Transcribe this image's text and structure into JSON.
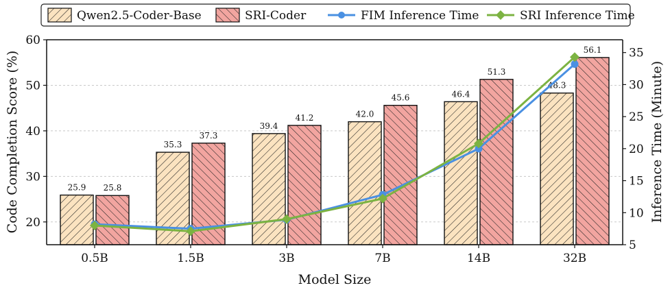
{
  "chart_data": {
    "type": "bar",
    "categories": [
      "0.5B",
      "1.5B",
      "3B",
      "7B",
      "14B",
      "32B"
    ],
    "xlabel": "Model Size",
    "ylabel": "Code Completion Score (%)",
    "y2label": "Inference Time (Minute)",
    "ylim": [
      15,
      60
    ],
    "y2lim": [
      5,
      37
    ],
    "yticks": [
      20,
      30,
      40,
      50,
      60
    ],
    "y2ticks": [
      5,
      10,
      15,
      20,
      25,
      30,
      35
    ],
    "grid": true,
    "legend_position": "top",
    "series": [
      {
        "name": "Qwen2.5-Coder-Base",
        "kind": "bar",
        "color": "#fbe3c0",
        "values": [
          25.9,
          35.3,
          39.4,
          42.0,
          46.4,
          48.3
        ],
        "labels": [
          "25.9",
          "35.3",
          "39.4",
          "42.0",
          "46.4",
          "48.3"
        ]
      },
      {
        "name": "SRI-Coder",
        "kind": "bar",
        "color": "#f2a5a0",
        "values": [
          25.8,
          37.3,
          41.2,
          45.6,
          51.3,
          56.1
        ],
        "labels": [
          "25.8",
          "37.3",
          "41.2",
          "45.6",
          "51.3",
          "56.1"
        ]
      },
      {
        "name": "FIM Inference Time",
        "kind": "line",
        "axis": "right",
        "color": "#4a90e2",
        "marker": "circle",
        "values": [
          8.2,
          7.5,
          8.9,
          12.8,
          20.0,
          33.2
        ]
      },
      {
        "name": "SRI Inference Time",
        "kind": "line",
        "axis": "right",
        "color": "#7cb342",
        "marker": "diamond",
        "values": [
          8.0,
          7.1,
          9.0,
          12.2,
          20.8,
          34.3
        ]
      }
    ]
  }
}
